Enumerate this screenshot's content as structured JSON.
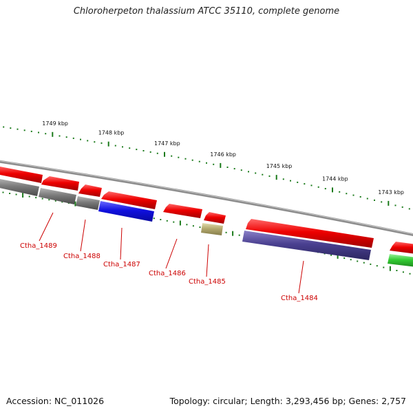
{
  "title": "Chloroherpeton thalassium ATCC 35110, complete genome",
  "footer": {
    "accession": "Accession: NC_011026",
    "summary": "Topology: circular; Length: 3,293,456 bp; Genes: 2,757"
  },
  "ruler": {
    "ticks": [
      "1749 kbp",
      "1748 kbp",
      "1747 kbp",
      "1746 kbp",
      "1745 kbp",
      "1744 kbp",
      "1743 kbp"
    ],
    "tick_color": "#1a7a1a"
  },
  "backbone_color": "#8c8c8c",
  "gene_labels": [
    "Ctha_1489",
    "Ctha_1488",
    "Ctha_1487",
    "Ctha_1486",
    "Ctha_1485",
    "Ctha_1484"
  ],
  "label_color": "#cc0000",
  "feature_colors": {
    "cds": "#e80000",
    "gray": "#777777",
    "blue": "#1010e0",
    "olive": "#b4aa6e",
    "purple": "#4a4090",
    "green": "#33cc33"
  }
}
